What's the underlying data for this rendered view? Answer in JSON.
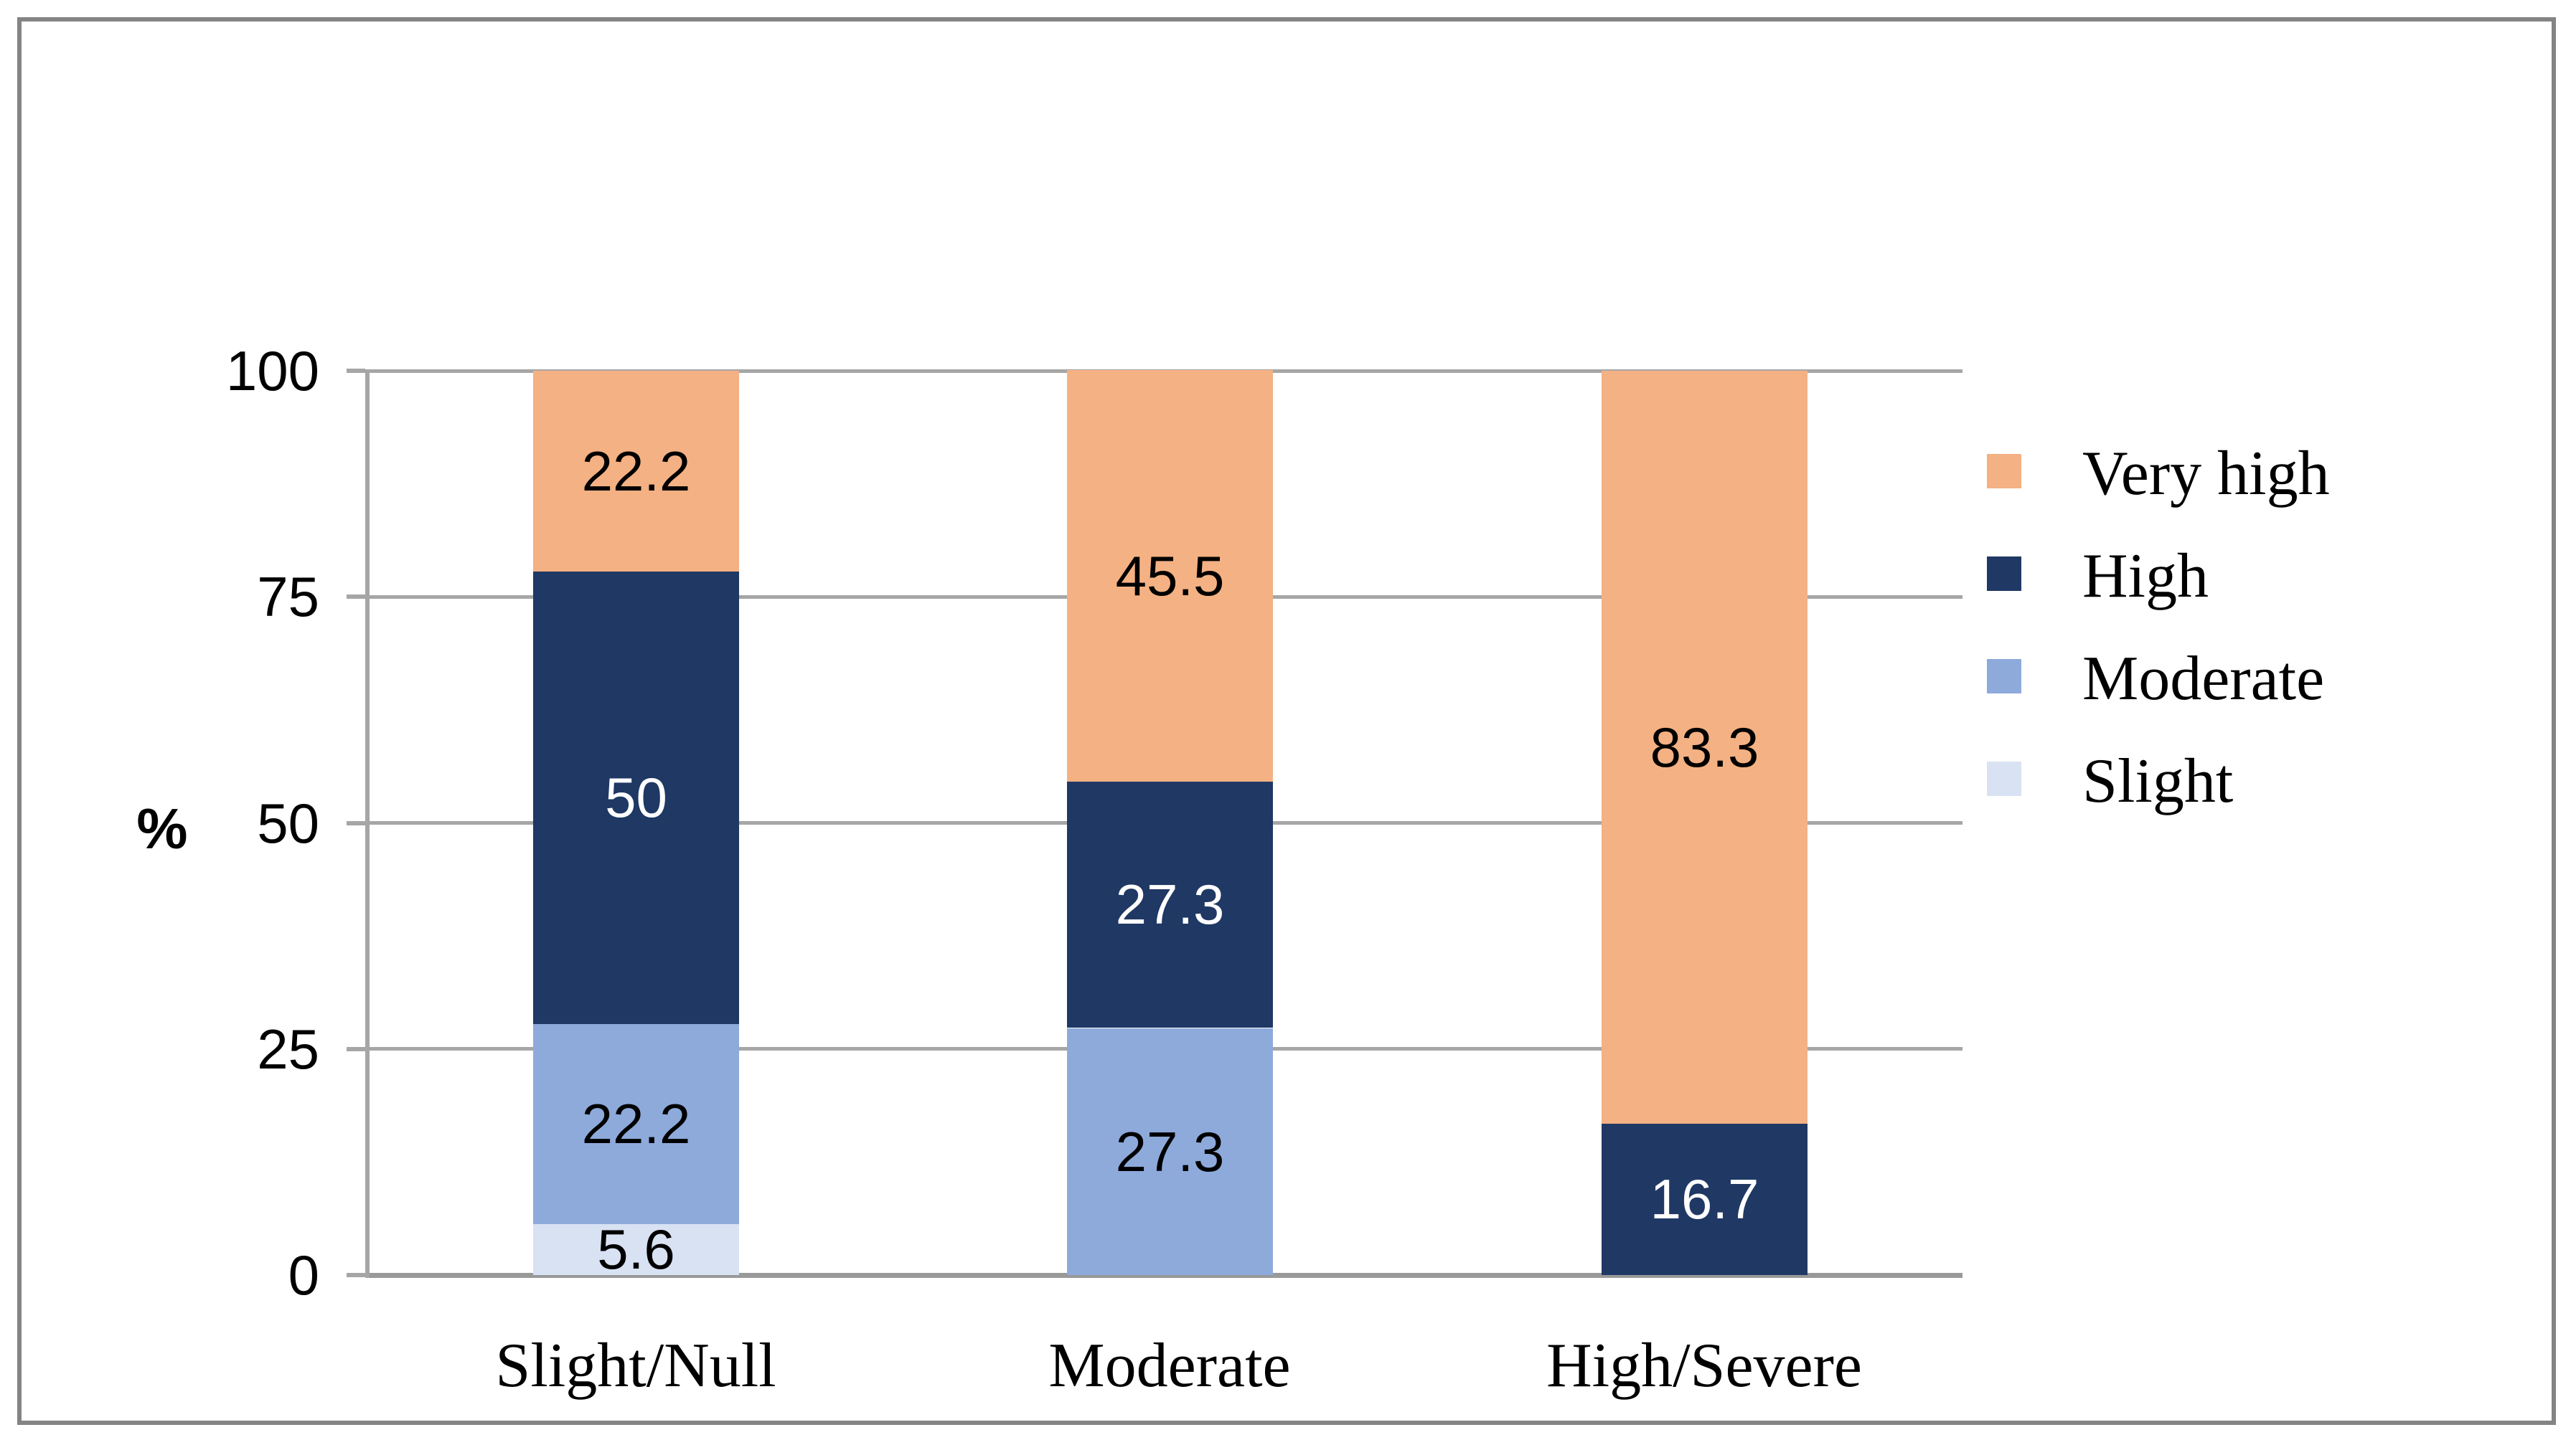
{
  "figure": {
    "background_color": "#ffffff",
    "border_color": "#848484"
  },
  "chart_data": {
    "type": "bar",
    "variant": "stacked-column-100",
    "title": "",
    "xlabel": "",
    "ylabel": "%",
    "ylim": [
      0,
      100
    ],
    "yticks": [
      0,
      25,
      50,
      75,
      100
    ],
    "grid": true,
    "gridline_color": "#A6A6A6",
    "axis_line_color": "#A6A6A6",
    "legend_position": "right",
    "categories": [
      "Slight/Null",
      "Moderate",
      "High/Severe"
    ],
    "series": [
      {
        "name": "Slight",
        "color": "#D9E2F3",
        "label_color": "#000000",
        "values": [
          5.6,
          null,
          null
        ],
        "labels": [
          "5.6",
          "",
          ""
        ]
      },
      {
        "name": "Moderate",
        "color": "#8EAADB",
        "label_color": "#000000",
        "values": [
          22.2,
          27.3,
          null
        ],
        "labels": [
          "22.2",
          "27.3",
          ""
        ]
      },
      {
        "name": "High",
        "color": "#1F3864",
        "label_color": "#FFFFFF",
        "values": [
          50,
          27.3,
          16.7
        ],
        "labels": [
          "50",
          "27.3",
          "16.7"
        ]
      },
      {
        "name": "Very high",
        "color": "#F4B183",
        "label_color": "#000000",
        "values": [
          22.2,
          45.5,
          83.3
        ],
        "labels": [
          "22.2",
          "45.5",
          "83.3"
        ]
      }
    ],
    "legend": [
      {
        "label": "Very high",
        "color": "#F4B183"
      },
      {
        "label": "High",
        "color": "#1F3864"
      },
      {
        "label": "Moderate",
        "color": "#8EAADB"
      },
      {
        "label": "Slight",
        "color": "#D9E2F3"
      }
    ]
  }
}
